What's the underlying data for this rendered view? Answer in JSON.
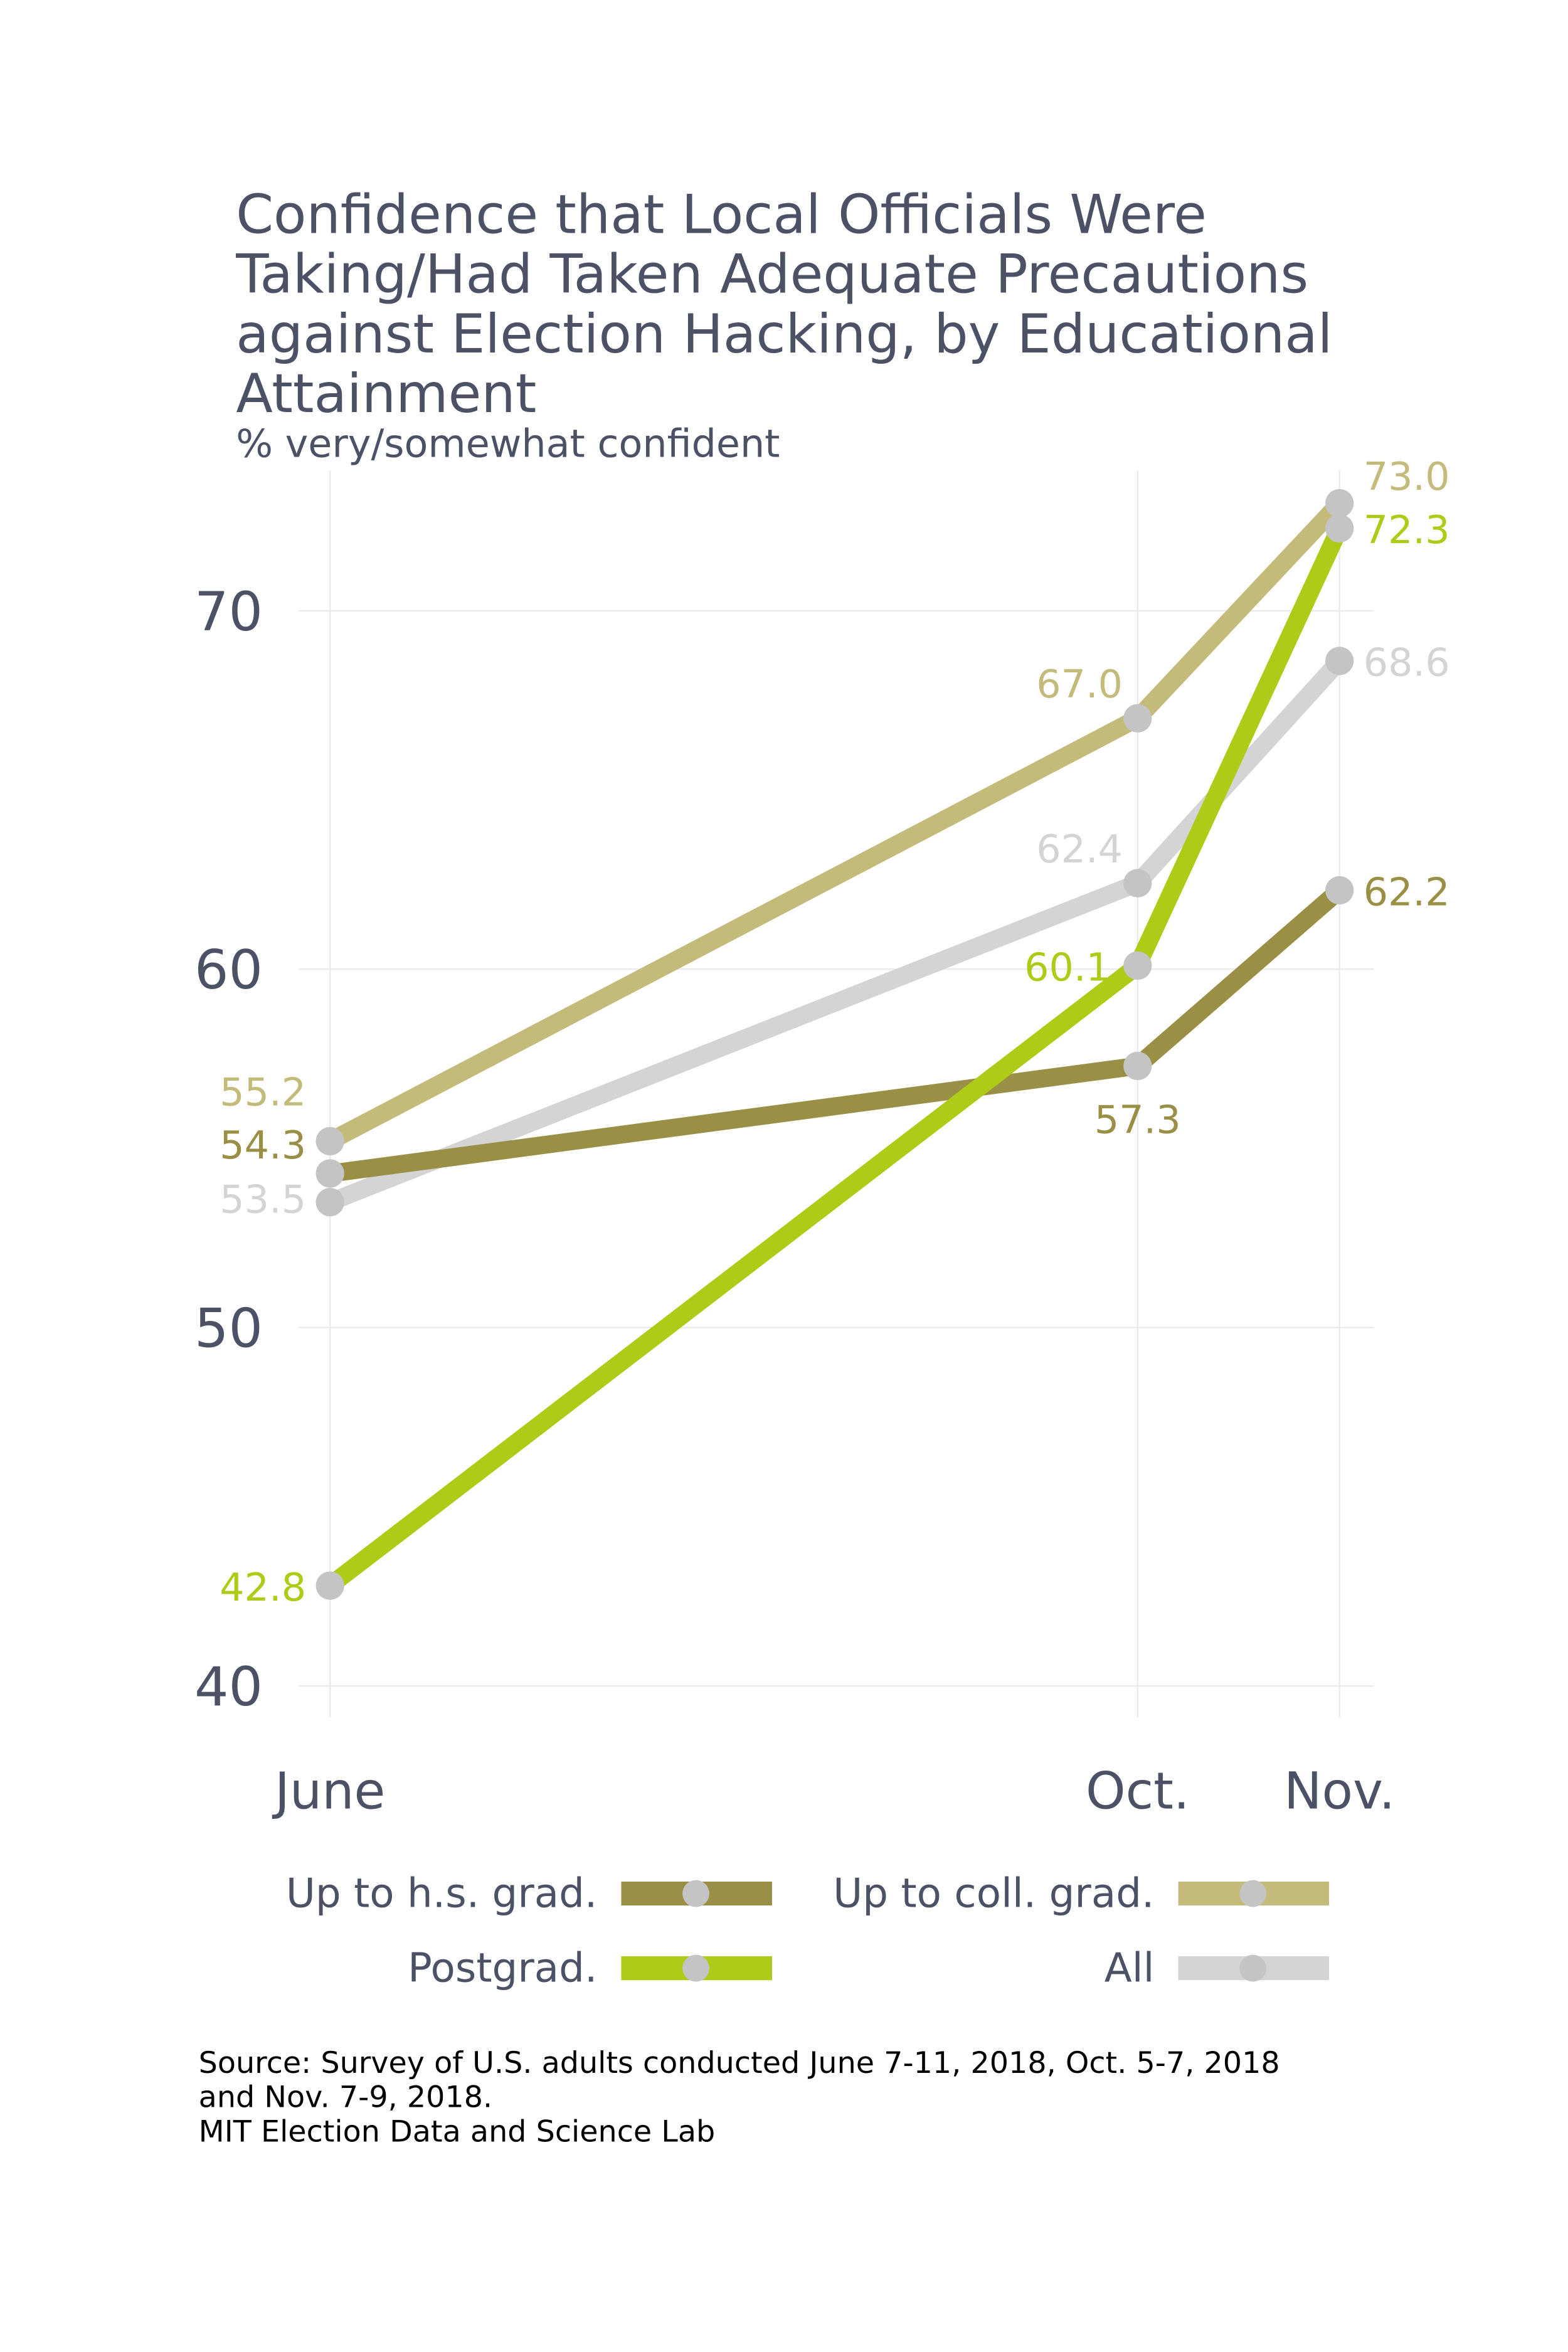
{
  "chart_data": {
    "type": "line",
    "title_lines": [
      "Confidence that Local Officials Were",
      "Taking/Had Taken Adequate Precautions",
      "against Election Hacking, by Educational",
      "Attainment"
    ],
    "subtitle": "% very/somewhat confident",
    "categories": [
      "June",
      "Oct.",
      "Nov."
    ],
    "x_positions_months": [
      6,
      10,
      11
    ],
    "ylim": [
      40,
      73
    ],
    "y_ticks": [
      "40",
      "50",
      "60",
      "70"
    ],
    "grid": true,
    "legend_placement": "bottom",
    "series": [
      {
        "name": "Up to h.s. grad.",
        "values": [
          54.3,
          57.3,
          62.2
        ],
        "labels": [
          "54.3",
          "57.3",
          "62.2"
        ],
        "color": "#9a9045"
      },
      {
        "name": "Up to coll. grad.",
        "values": [
          55.2,
          67.0,
          73.0
        ],
        "labels": [
          "55.2",
          "67.0",
          "73.0"
        ],
        "color": "#c2bb7a"
      },
      {
        "name": "Postgrad.",
        "values": [
          42.8,
          60.1,
          72.3
        ],
        "labels": [
          "42.8",
          "60.1",
          "72.3"
        ],
        "color": "#aecb17"
      },
      {
        "name": "All",
        "values": [
          53.5,
          62.4,
          68.6
        ],
        "labels": [
          "53.5",
          "62.4",
          "68.6"
        ],
        "color": "#d4d4d4"
      }
    ],
    "point_color": "#c4c4c4",
    "caption_lines": [
      "Source: Survey of U.S. adults conducted June 7-11, 2018, Oct. 5-7, 2018",
      "and Nov. 7-9, 2018.",
      "MIT Election Data and Science Lab"
    ]
  }
}
